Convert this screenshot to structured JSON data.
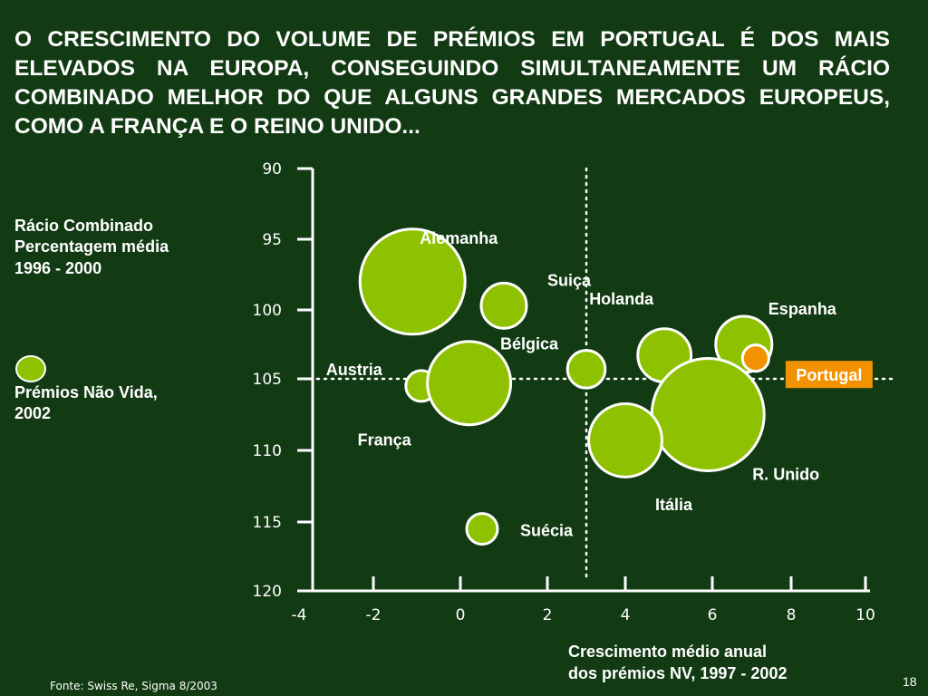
{
  "title": "O CRESCIMENTO DO VOLUME DE PRÉMIOS EM PORTUGAL É DOS MAIS ELEVADOS NA EUROPA, CONSEGUINDO SIMULTANEAMENTE UM RÁCIO COMBINADO MELHOR DO QUE ALGUNS GRANDES MERCADOS EUROPEUS, COMO A FRANÇA E O REINO UNIDO...",
  "ylabel_lines": [
    "Rácio Combinado",
    "Percentagem média",
    "1996 - 2000"
  ],
  "legend_label_lines": [
    "Prémios Não Vida,",
    "2002"
  ],
  "xlabel_lines": [
    "Crescimento médio anual",
    "dos prémios  NV, 1997 - 2002"
  ],
  "source": "Fonte: Swiss Re, Sigma 8/2003",
  "page_number": "18",
  "colors": {
    "background": "#123a13",
    "bubble": "#8ec200",
    "highlight": "#f39200",
    "text": "#ffffff"
  },
  "chart_data": {
    "type": "scatter",
    "bubble": true,
    "xlim": [
      -4,
      10
    ],
    "ylim": [
      90,
      120
    ],
    "y_inverted": true,
    "xticks": [
      "-4",
      "-2",
      "0",
      "2",
      "4",
      "6",
      "8",
      "10"
    ],
    "yticks": [
      "90",
      "95",
      "100",
      "105",
      "110",
      "115",
      "120"
    ],
    "reference_lines": {
      "x": 3,
      "y": 105
    },
    "points": [
      {
        "name": "Alemanha",
        "x": -1.1,
        "y": 98,
        "size": 3.5
      },
      {
        "name": "Suiça",
        "x": 1.0,
        "y": 99.7,
        "size": 0.65
      },
      {
        "name": "Holanda",
        "x": 4.9,
        "y": 103.3,
        "size": 0.9
      },
      {
        "name": "Espanha",
        "x": 6.8,
        "y": 102.5,
        "size": 1.0
      },
      {
        "name": "Bélgica",
        "x": 3.0,
        "y": 104.3,
        "size": 0.45
      },
      {
        "name": "Austria",
        "x": -0.9,
        "y": 105.5,
        "size": 0.3
      },
      {
        "name": "França",
        "x": 0.2,
        "y": 105.3,
        "size": 2.2
      },
      {
        "name": "R. Unido",
        "x": 5.9,
        "y": 107.5,
        "size": 4.0
      },
      {
        "name": "Itália",
        "x": 4.0,
        "y": 109.3,
        "size": 1.7
      },
      {
        "name": "Suécia",
        "x": 0.5,
        "y": 115.5,
        "size": 0.3
      },
      {
        "name": "Portugal",
        "x": 7.1,
        "y": 103.5,
        "size": 0.22,
        "highlight": true
      }
    ]
  }
}
